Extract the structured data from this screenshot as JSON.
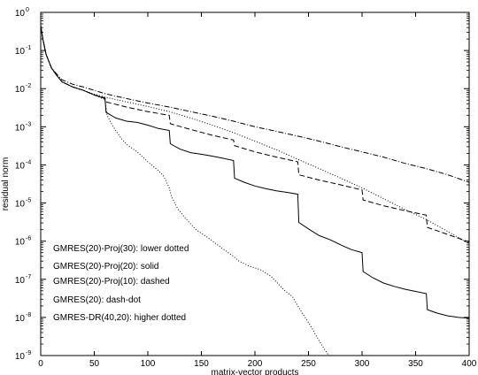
{
  "chart_data": {
    "type": "line",
    "title": "",
    "xlabel": "matrix-vector products",
    "ylabel": "residual norm",
    "xlim": [
      0,
      400
    ],
    "ylim": [
      1e-09,
      1
    ],
    "yscale": "log",
    "grid": false,
    "x_ticks": [
      0,
      50,
      100,
      150,
      200,
      250,
      300,
      350,
      400
    ],
    "x_tick_labels": [
      "0",
      "50",
      "100",
      "150",
      "200",
      "250",
      "300",
      "350",
      "400"
    ],
    "y_ticks": [
      1e-09,
      1e-08,
      1e-07,
      1e-06,
      1e-05,
      0.0001,
      0.001,
      0.01,
      0.1,
      1
    ],
    "y_tick_labels": [
      {
        "base": "10",
        "exp": "-9"
      },
      {
        "base": "10",
        "exp": "-8"
      },
      {
        "base": "10",
        "exp": "-7"
      },
      {
        "base": "10",
        "exp": "-6"
      },
      {
        "base": "10",
        "exp": "-5"
      },
      {
        "base": "10",
        "exp": "-4"
      },
      {
        "base": "10",
        "exp": "-3"
      },
      {
        "base": "10",
        "exp": "-2"
      },
      {
        "base": "10",
        "exp": "-1"
      },
      {
        "base": "10",
        "exp": "0"
      }
    ],
    "legend_position": "bottom-left",
    "legend_entries": [
      "GMRES(20)-Proj(30): lower dotted",
      "GMRES(20)-Proj(20): solid",
      "GMRES(20)-Proj(10): dashed",
      "GMRES(20): dash-dot",
      "GMRES-DR(40,20): higher dotted"
    ],
    "series": [
      {
        "style": "dotted",
        "points": [
          [
            0,
            0.45
          ],
          [
            2,
            0.2
          ],
          [
            5,
            0.08
          ],
          [
            10,
            0.035
          ],
          [
            15,
            0.022
          ],
          [
            20,
            0.015
          ],
          [
            30,
            0.011
          ],
          [
            40,
            0.009
          ],
          [
            50,
            0.0068
          ],
          [
            60,
            0.0052
          ],
          [
            62,
            0.002
          ],
          [
            66,
            0.0012
          ],
          [
            70,
            0.0008
          ],
          [
            75,
            0.0005
          ],
          [
            80,
            0.00035
          ],
          [
            90,
            0.00022
          ],
          [
            100,
            0.00012
          ],
          [
            110,
            7e-05
          ],
          [
            115,
            5e-05
          ],
          [
            120,
            2.5e-05
          ],
          [
            122,
            1.5e-05
          ],
          [
            128,
            7e-06
          ],
          [
            135,
            4e-06
          ],
          [
            145,
            2e-06
          ],
          [
            155,
            1.3e-06
          ],
          [
            165,
            8e-07
          ],
          [
            175,
            5e-07
          ],
          [
            180,
            4e-07
          ],
          [
            185,
            3e-07
          ],
          [
            195,
            2.2e-07
          ],
          [
            205,
            1.8e-07
          ],
          [
            215,
            1.2e-07
          ],
          [
            228,
            5e-08
          ],
          [
            235,
            3.5e-08
          ],
          [
            240,
            2e-08
          ],
          [
            245,
            1.2e-08
          ],
          [
            252,
            6e-09
          ],
          [
            258,
            3e-09
          ],
          [
            264,
            1.6e-09
          ],
          [
            269,
            1e-09
          ]
        ]
      },
      {
        "style": "solid",
        "points": [
          [
            0,
            0.45
          ],
          [
            2,
            0.2
          ],
          [
            5,
            0.08
          ],
          [
            10,
            0.035
          ],
          [
            15,
            0.022
          ],
          [
            20,
            0.015
          ],
          [
            30,
            0.011
          ],
          [
            40,
            0.009
          ],
          [
            50,
            0.0068
          ],
          [
            60,
            0.0055
          ],
          [
            61,
            0.0024
          ],
          [
            70,
            0.0017
          ],
          [
            80,
            0.0014
          ],
          [
            90,
            0.0013
          ],
          [
            100,
            0.0011
          ],
          [
            110,
            0.0009
          ],
          [
            120,
            0.0008
          ],
          [
            121,
            0.00036
          ],
          [
            130,
            0.00026
          ],
          [
            140,
            0.00021
          ],
          [
            150,
            0.00019
          ],
          [
            160,
            0.00017
          ],
          [
            170,
            0.00015
          ],
          [
            180,
            0.00013
          ],
          [
            181,
            4.5e-05
          ],
          [
            190,
            3.5e-05
          ],
          [
            200,
            2.8e-05
          ],
          [
            210,
            2.4e-05
          ],
          [
            220,
            2.1e-05
          ],
          [
            230,
            1.9e-05
          ],
          [
            240,
            1.7e-05
          ],
          [
            241,
            3.1e-06
          ],
          [
            250,
            2.1e-06
          ],
          [
            260,
            1.4e-06
          ],
          [
            270,
            1.1e-06
          ],
          [
            280,
            8e-07
          ],
          [
            290,
            6e-07
          ],
          [
            300,
            5e-07
          ],
          [
            301,
            1.6e-07
          ],
          [
            310,
            1.1e-07
          ],
          [
            320,
            8e-08
          ],
          [
            330,
            6.5e-08
          ],
          [
            340,
            5.5e-08
          ],
          [
            350,
            4.8e-08
          ],
          [
            360,
            4.2e-08
          ],
          [
            361,
            1.6e-08
          ],
          [
            370,
            1.3e-08
          ],
          [
            380,
            1.1e-08
          ],
          [
            390,
            1e-08
          ],
          [
            400,
            9.5e-09
          ]
        ]
      },
      {
        "style": "dashed",
        "points": [
          [
            0,
            0.45
          ],
          [
            2,
            0.2
          ],
          [
            5,
            0.08
          ],
          [
            10,
            0.035
          ],
          [
            15,
            0.022
          ],
          [
            20,
            0.015
          ],
          [
            30,
            0.011
          ],
          [
            40,
            0.009
          ],
          [
            50,
            0.0068
          ],
          [
            60,
            0.0057
          ],
          [
            61,
            0.0045
          ],
          [
            80,
            0.0033
          ],
          [
            100,
            0.0025
          ],
          [
            120,
            0.002
          ],
          [
            121,
            0.0012
          ],
          [
            140,
            0.00085
          ],
          [
            160,
            0.0006
          ],
          [
            180,
            0.00045
          ],
          [
            181,
            0.00032
          ],
          [
            200,
            0.00022
          ],
          [
            220,
            0.00016
          ],
          [
            240,
            0.00012
          ],
          [
            241,
            5.5e-05
          ],
          [
            260,
            4e-05
          ],
          [
            280,
            3e-05
          ],
          [
            300,
            2.2e-05
          ],
          [
            301,
            1.2e-05
          ],
          [
            320,
            8.5e-06
          ],
          [
            340,
            6.3e-06
          ],
          [
            360,
            4.8e-06
          ],
          [
            361,
            2.3e-06
          ],
          [
            380,
            1.5e-06
          ],
          [
            400,
            9.5e-07
          ]
        ]
      },
      {
        "style": "dash-dot",
        "points": [
          [
            0,
            0.45
          ],
          [
            2,
            0.2
          ],
          [
            5,
            0.08
          ],
          [
            10,
            0.035
          ],
          [
            15,
            0.024
          ],
          [
            20,
            0.017
          ],
          [
            30,
            0.013
          ],
          [
            40,
            0.011
          ],
          [
            50,
            0.009
          ],
          [
            60,
            0.0074
          ],
          [
            80,
            0.0055
          ],
          [
            100,
            0.0042
          ],
          [
            120,
            0.0033
          ],
          [
            140,
            0.0025
          ],
          [
            160,
            0.0019
          ],
          [
            180,
            0.0014
          ],
          [
            200,
            0.001
          ],
          [
            220,
            0.00076
          ],
          [
            240,
            0.00057
          ],
          [
            260,
            0.00042
          ],
          [
            280,
            0.0003
          ],
          [
            300,
            0.00022
          ],
          [
            320,
            0.00016
          ],
          [
            340,
            0.00011
          ],
          [
            360,
            8e-05
          ],
          [
            380,
            5.5e-05
          ],
          [
            400,
            3.5e-05
          ]
        ]
      },
      {
        "style": "dotted",
        "points": [
          [
            0,
            0.45
          ],
          [
            2,
            0.2
          ],
          [
            5,
            0.08
          ],
          [
            10,
            0.035
          ],
          [
            15,
            0.022
          ],
          [
            20,
            0.015
          ],
          [
            30,
            0.011
          ],
          [
            40,
            0.009
          ],
          [
            50,
            0.0072
          ],
          [
            60,
            0.006
          ],
          [
            80,
            0.0045
          ],
          [
            100,
            0.0034
          ],
          [
            120,
            0.0025
          ],
          [
            140,
            0.0017
          ],
          [
            160,
            0.0011
          ],
          [
            180,
            0.0007
          ],
          [
            200,
            0.00042
          ],
          [
            220,
            0.00025
          ],
          [
            240,
            0.00014
          ],
          [
            260,
            8e-05
          ],
          [
            280,
            4.5e-05
          ],
          [
            300,
            2.5e-05
          ],
          [
            320,
            1.3e-05
          ],
          [
            340,
            6.8e-06
          ],
          [
            360,
            3.7e-06
          ],
          [
            380,
            1.8e-06
          ],
          [
            400,
            8.5e-07
          ]
        ]
      }
    ]
  }
}
